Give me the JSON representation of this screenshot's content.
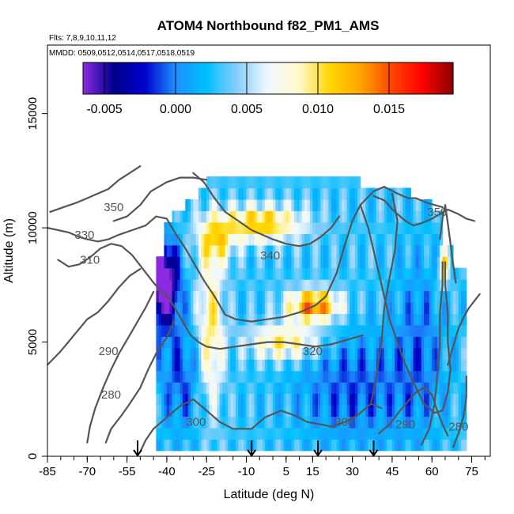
{
  "chart_data": {
    "type": "heatmap",
    "title": "ATOM4 Northbound f82_PM1_AMS",
    "flights_text": "Flts: 7,8,9,10,11,12",
    "dates_text": "MMDD: 0509,0512,0514,0517,0518,0519",
    "xlabel": "Latitude (deg N)",
    "ylabel": "Altitude (m)",
    "xlim": [
      -85,
      82
    ],
    "ylim": [
      0,
      18000
    ],
    "x_ticks": [
      -85,
      -70,
      -55,
      -40,
      -25,
      -10,
      5,
      15,
      30,
      45,
      60,
      75
    ],
    "x_minor_step": 5,
    "y_ticks": [
      0,
      5000,
      10000,
      15000
    ],
    "colorbar": {
      "vmin": -0.0065,
      "vmax": 0.0195,
      "ticks": [
        "-0.005",
        "0.000",
        "0.005",
        "0.010",
        "0.015"
      ],
      "tick_values": [
        -0.005,
        0.0,
        0.005,
        0.01,
        0.015
      ],
      "colors": [
        "#8a2be2",
        "#00008b",
        "#0000cd",
        "#1e90ff",
        "#00bfff",
        "#87cefa",
        "#f0f8ff",
        "#fffacd",
        "#ffd700",
        "#ffa500",
        "#ff4500",
        "#ff0000",
        "#8b0000"
      ]
    },
    "field": {
      "lat_range": [
        -44,
        72
      ],
      "lat_step": 1,
      "alt_range": [
        500,
        12500
      ],
      "alt_step": 500
    },
    "contours": [
      {
        "label": "280",
        "label_x": -61,
        "label_y": 2700
      },
      {
        "label": "290",
        "label_x": -62,
        "label_y": 4600
      },
      {
        "label": "300",
        "label_x": -29,
        "label_y": 1500
      },
      {
        "label": "300",
        "label_x": 27,
        "label_y": 1500
      },
      {
        "label": "290",
        "label_x": 50,
        "label_y": 1400
      },
      {
        "label": "280",
        "label_x": 70,
        "label_y": 1300
      },
      {
        "label": "310",
        "label_x": -69,
        "label_y": 8600
      },
      {
        "label": "320",
        "label_x": 15,
        "label_y": 4600
      },
      {
        "label": "330",
        "label_x": -71,
        "label_y": 9700
      },
      {
        "label": "340",
        "label_x": -1,
        "label_y": 8800
      },
      {
        "label": "350",
        "label_x": -60,
        "label_y": 10900
      },
      {
        "label": "350",
        "label_x": 62,
        "label_y": 10700
      }
    ],
    "flight_arrows_lat": [
      -51,
      -8,
      17,
      38
    ]
  }
}
